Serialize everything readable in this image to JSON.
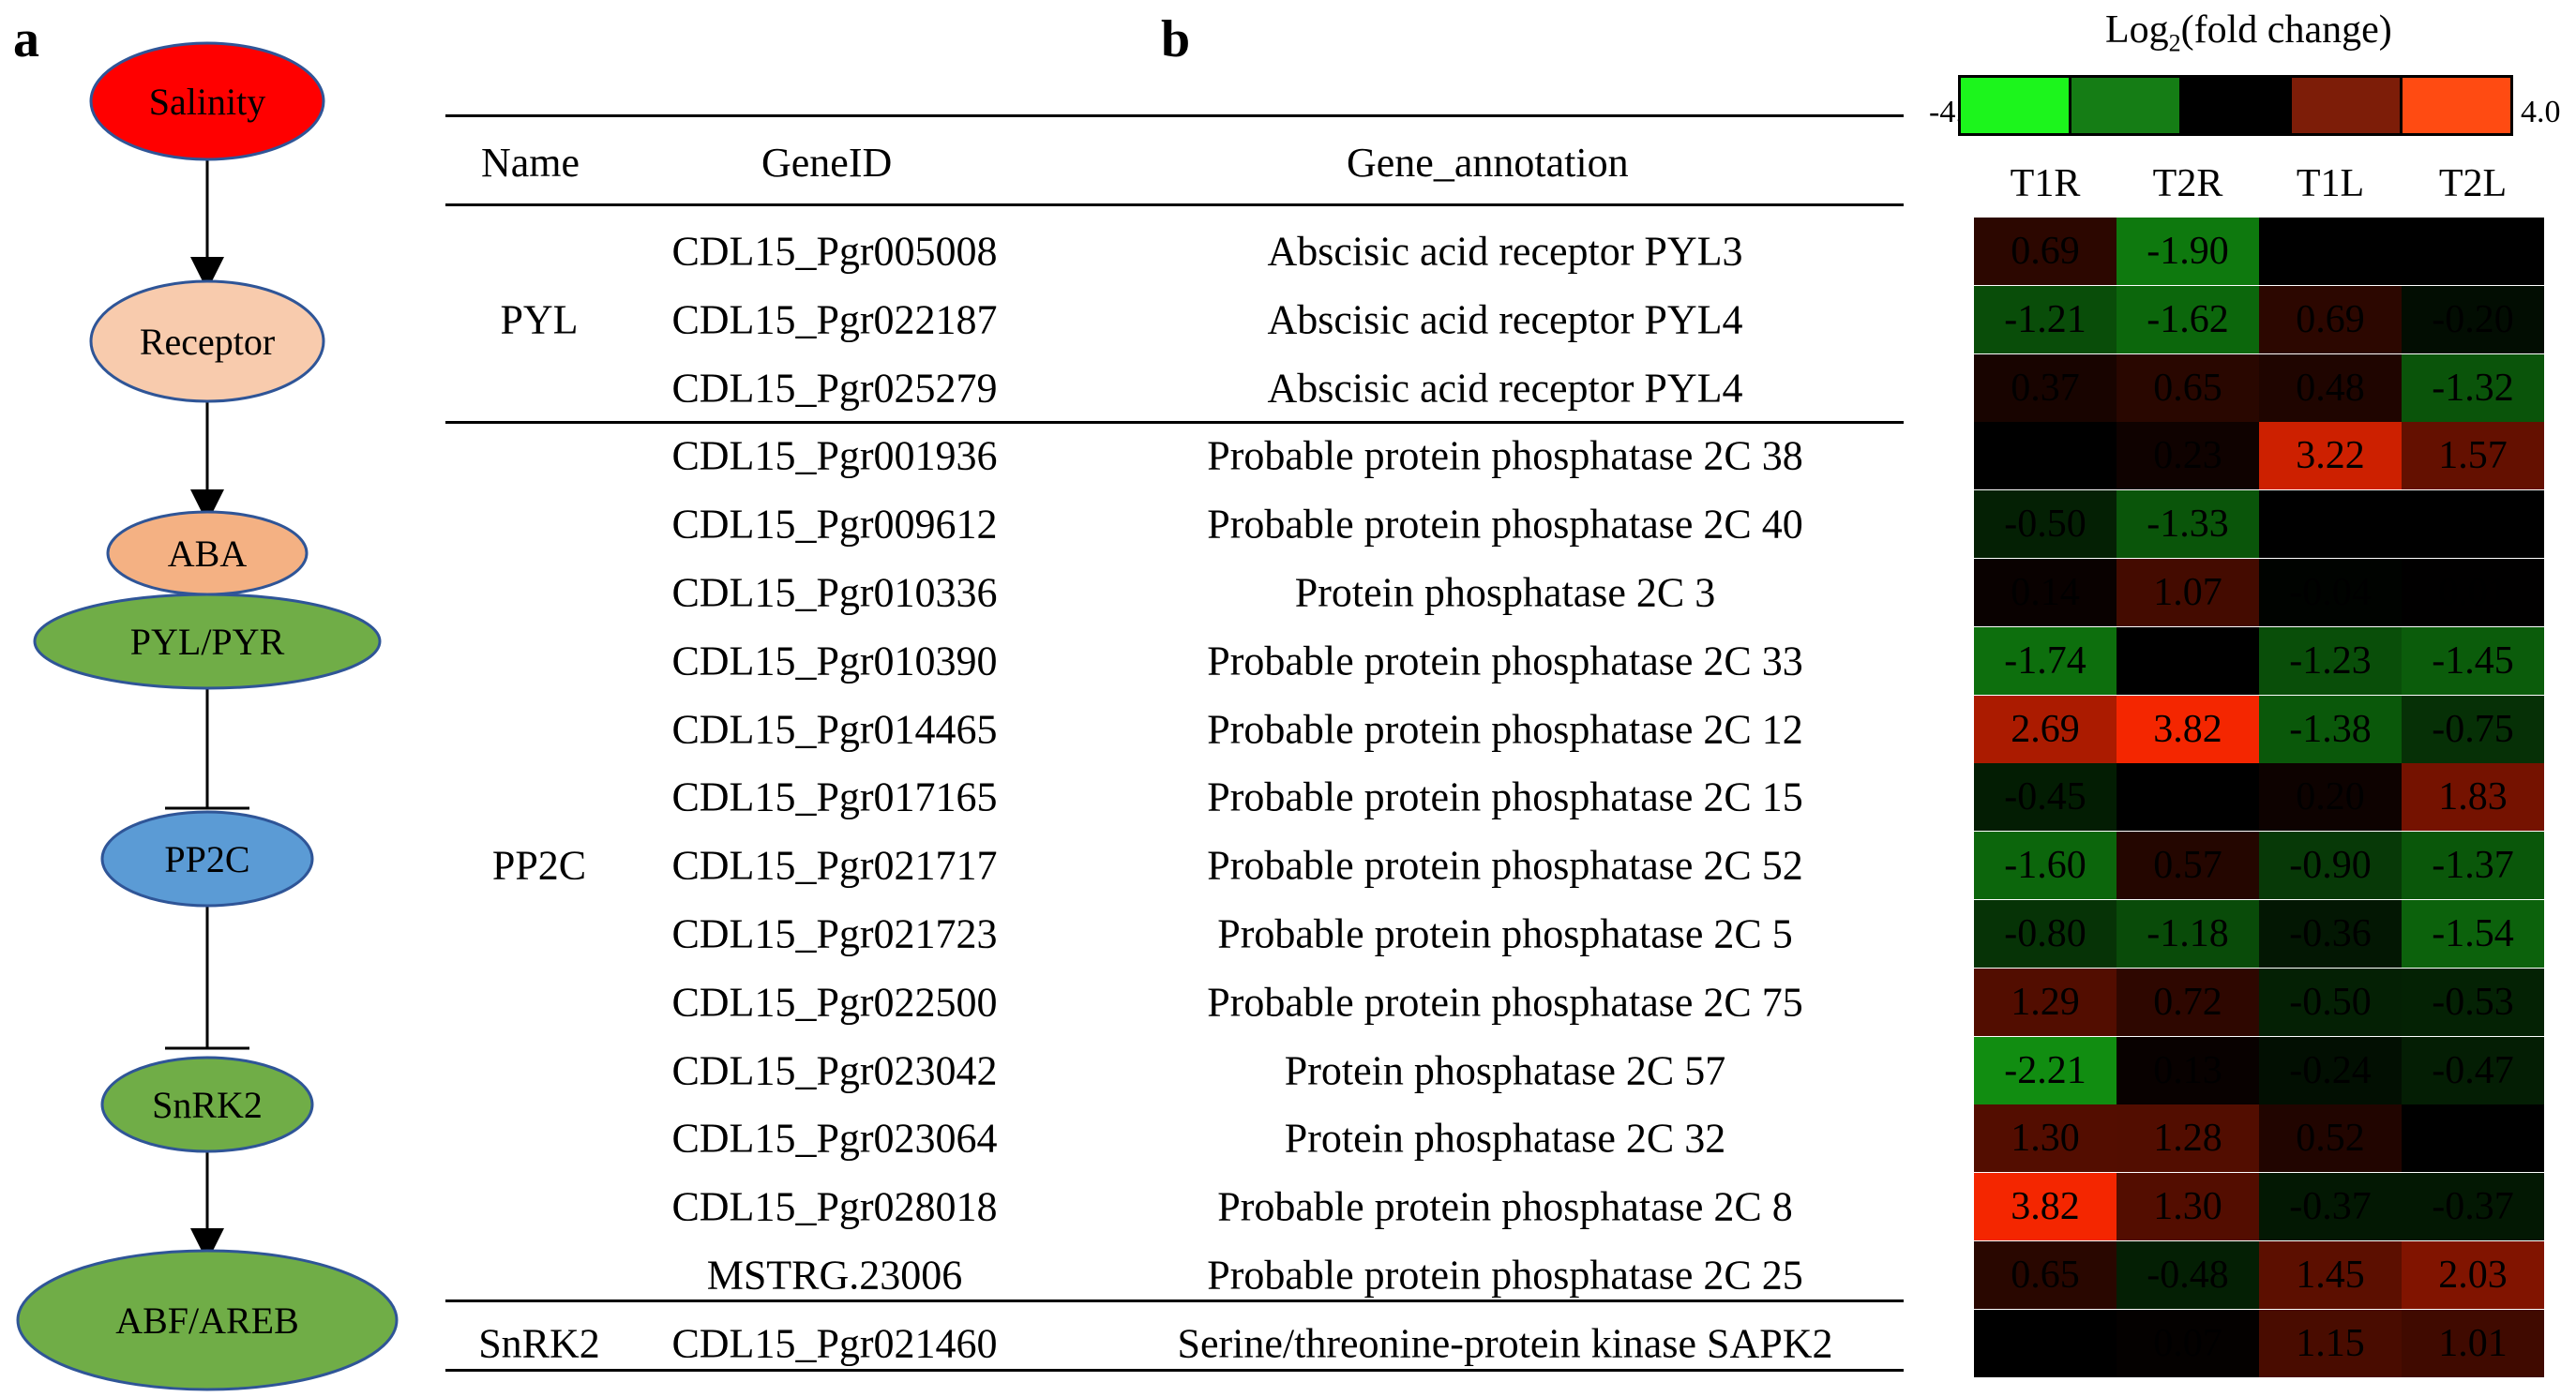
{
  "panels": {
    "a": "a",
    "b": "b"
  },
  "pathway": {
    "nodes": [
      {
        "id": "salinity",
        "label": "Salinity",
        "color": "#ff0000"
      },
      {
        "id": "receptor",
        "label": "Receptor",
        "color": "#f8cbad"
      },
      {
        "id": "aba",
        "label": "ABA",
        "color": "#f4b183"
      },
      {
        "id": "pyl",
        "label": "PYL/PYR",
        "color": "#70ad47"
      },
      {
        "id": "pp2c",
        "label": "PP2C",
        "color": "#5b9bd5"
      },
      {
        "id": "snrk2",
        "label": "SnRK2",
        "color": "#70ad47"
      },
      {
        "id": "abf",
        "label": "ABF/AREB",
        "color": "#70ad47"
      }
    ]
  },
  "table": {
    "headers": {
      "name": "Name",
      "gene_id": "GeneID",
      "annotation": "Gene_annotation"
    },
    "groups": [
      {
        "name": "PYL",
        "rows": [
          {
            "id": "CDL15_Pgr005008",
            "annotation": "Abscisic acid receptor PYL3",
            "values": [
              "0.69",
              "-1.90",
              "0.00",
              "0.00"
            ]
          },
          {
            "id": "CDL15_Pgr022187",
            "annotation": "Abscisic acid receptor PYL4",
            "values": [
              "-1.21",
              "-1.62",
              "0.69",
              "-0.20"
            ]
          },
          {
            "id": "CDL15_Pgr025279",
            "annotation": "Abscisic acid receptor PYL4",
            "values": [
              "0.37",
              "0.65",
              "0.48",
              "-1.32"
            ]
          }
        ]
      },
      {
        "name": "PP2C",
        "rows": [
          {
            "id": "CDL15_Pgr001936",
            "annotation": "Probable protein phosphatase 2C 38",
            "values": [
              "",
              "0.23",
              "3.22",
              "1.57"
            ]
          },
          {
            "id": "CDL15_Pgr009612",
            "annotation": "Probable protein phosphatase 2C 40",
            "values": [
              "-0.50",
              "-1.33",
              "0.00",
              ""
            ]
          },
          {
            "id": "CDL15_Pgr010336",
            "annotation": "Protein phosphatase 2C 3",
            "values": [
              "0.14",
              "1.07",
              "-0.04",
              "0.01"
            ]
          },
          {
            "id": "CDL15_Pgr010390",
            "annotation": "Probable protein phosphatase 2C 33",
            "values": [
              "-1.74",
              "",
              "-1.23",
              "-1.45"
            ]
          },
          {
            "id": "CDL15_Pgr014465",
            "annotation": "Probable protein phosphatase 2C 12",
            "values": [
              "2.69",
              "3.82",
              "-1.38",
              "-0.75"
            ]
          },
          {
            "id": "CDL15_Pgr017165",
            "annotation": "Probable protein phosphatase 2C 15",
            "values": [
              "-0.45",
              "",
              "0.20",
              "1.83"
            ]
          },
          {
            "id": "CDL15_Pgr021717",
            "annotation": "Probable protein phosphatase 2C 52",
            "values": [
              "-1.60",
              "0.57",
              "-0.90",
              "-1.37"
            ]
          },
          {
            "id": "CDL15_Pgr021723",
            "annotation": "Probable protein phosphatase 2C 5",
            "values": [
              "-0.80",
              "-1.18",
              "-0.36",
              "-1.54"
            ]
          },
          {
            "id": "CDL15_Pgr022500",
            "annotation": "Probable protein phosphatase 2C 75",
            "values": [
              "1.29",
              "0.72",
              "-0.50",
              "-0.53"
            ]
          },
          {
            "id": "CDL15_Pgr023042",
            "annotation": "Protein phosphatase 2C 57",
            "values": [
              "-2.21",
              "0.13",
              "-0.24",
              "-0.47"
            ]
          },
          {
            "id": "CDL15_Pgr023064",
            "annotation": "Protein phosphatase 2C 32",
            "values": [
              "1.30",
              "1.28",
              "0.52",
              ""
            ]
          },
          {
            "id": "CDL15_Pgr028018",
            "annotation": "Probable protein phosphatase 2C 8",
            "values": [
              "3.82",
              "1.30",
              "-0.37",
              "-0.37"
            ]
          },
          {
            "id": "MSTRG.23006",
            "annotation": "Probable protein phosphatase 2C 25",
            "values": [
              "0.65",
              "-0.48",
              "1.45",
              "2.03"
            ]
          }
        ]
      },
      {
        "name": "SnRK2",
        "rows": [
          {
            "id": "CDL15_Pgr021460",
            "annotation": "Serine/threonine-protein kinase SAPK2",
            "values": [
              "",
              "0.07",
              "1.15",
              "1.01"
            ]
          }
        ]
      }
    ]
  },
  "heatmap": {
    "columns": [
      "T1R",
      "T2R",
      "T1L",
      "T2L"
    ],
    "legend": {
      "title_prefix": "Log",
      "title_sub": "2",
      "title_suffix": "(fold change)",
      "min": "-4.0",
      "max": "4.0",
      "colors": [
        "#1cf51c",
        "#157d15",
        "#000000",
        "#7d1d08",
        "#ff4b12"
      ]
    }
  },
  "chart_data": {
    "type": "heatmap",
    "title": "Log2(fold change)",
    "x": [
      "T1R",
      "T2R",
      "T1L",
      "T2L"
    ],
    "y": [
      "CDL15_Pgr005008",
      "CDL15_Pgr022187",
      "CDL15_Pgr025279",
      "CDL15_Pgr001936",
      "CDL15_Pgr009612",
      "CDL15_Pgr010336",
      "CDL15_Pgr010390",
      "CDL15_Pgr014465",
      "CDL15_Pgr017165",
      "CDL15_Pgr021717",
      "CDL15_Pgr021723",
      "CDL15_Pgr022500",
      "CDL15_Pgr023042",
      "CDL15_Pgr023064",
      "CDL15_Pgr028018",
      "MSTRG.23006",
      "CDL15_Pgr021460"
    ],
    "values": [
      [
        0.69,
        -1.9,
        0.0,
        0.0
      ],
      [
        -1.21,
        -1.62,
        0.69,
        -0.2
      ],
      [
        0.37,
        0.65,
        0.48,
        -1.32
      ],
      [
        0.0,
        0.23,
        3.22,
        1.57
      ],
      [
        -0.5,
        -1.33,
        0.0,
        0.0
      ],
      [
        0.14,
        1.07,
        -0.04,
        0.01
      ],
      [
        -1.74,
        0.0,
        -1.23,
        -1.45
      ],
      [
        2.69,
        3.82,
        -1.38,
        -0.75
      ],
      [
        -0.45,
        0.0,
        0.2,
        1.83
      ],
      [
        -1.6,
        0.57,
        -0.9,
        -1.37
      ],
      [
        -0.8,
        -1.18,
        -0.36,
        -1.54
      ],
      [
        1.29,
        0.72,
        -0.5,
        -0.53
      ],
      [
        -2.21,
        0.13,
        -0.24,
        -0.47
      ],
      [
        1.3,
        1.28,
        0.52,
        0.0
      ],
      [
        3.82,
        1.3,
        -0.37,
        -0.37
      ],
      [
        0.65,
        -0.48,
        1.45,
        2.03
      ],
      [
        0.0,
        0.07,
        1.15,
        1.01
      ]
    ],
    "zlim": [
      -4.0,
      4.0
    ]
  }
}
